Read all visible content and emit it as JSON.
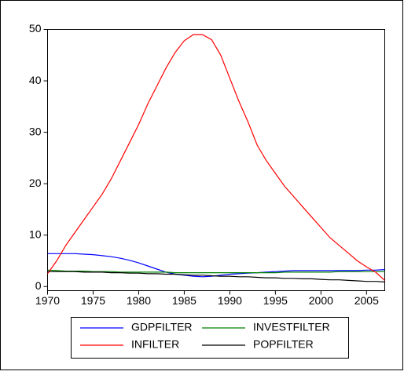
{
  "chart_data": {
    "type": "line",
    "x": [
      1970,
      1971,
      1972,
      1973,
      1974,
      1975,
      1976,
      1977,
      1978,
      1979,
      1980,
      1981,
      1982,
      1983,
      1984,
      1985,
      1986,
      1987,
      1988,
      1989,
      1990,
      1991,
      1992,
      1993,
      1994,
      1995,
      1996,
      1997,
      1998,
      1999,
      2000,
      2001,
      2002,
      2003,
      2004,
      2005,
      2006,
      2007
    ],
    "series": [
      {
        "name": "GDPFILTER",
        "color": "#0000ff",
        "values": [
          6.4,
          6.4,
          6.4,
          6.4,
          6.3,
          6.2,
          6.0,
          5.8,
          5.5,
          5.1,
          4.6,
          4.0,
          3.4,
          2.8,
          2.4,
          2.2,
          2.0,
          1.9,
          2.0,
          2.2,
          2.4,
          2.5,
          2.6,
          2.7,
          2.8,
          2.9,
          3.0,
          3.1,
          3.1,
          3.1,
          3.1,
          3.1,
          3.1,
          3.1,
          3.1,
          3.2,
          3.2,
          3.3
        ]
      },
      {
        "name": "INVESTFILTER",
        "color": "#008000",
        "values": [
          3.2,
          3.1,
          3.0,
          3.0,
          3.0,
          2.9,
          2.9,
          2.9,
          2.8,
          2.8,
          2.8,
          2.8,
          2.8,
          2.8,
          2.7,
          2.7,
          2.7,
          2.7,
          2.7,
          2.7,
          2.7,
          2.7,
          2.7,
          2.7,
          2.7,
          2.7,
          2.8,
          2.8,
          2.8,
          2.8,
          2.8,
          2.8,
          2.9,
          2.9,
          2.9,
          2.9,
          2.9,
          2.9
        ]
      },
      {
        "name": "INFILTER",
        "color": "#ff0000",
        "values": [
          2.5,
          5,
          8,
          10.5,
          13,
          15.5,
          18,
          21,
          24.5,
          28,
          31.5,
          35.5,
          39,
          42.5,
          45.5,
          47.8,
          49,
          49,
          48,
          45,
          40.5,
          36,
          32,
          27.5,
          24.5,
          22,
          19.5,
          17.5,
          15.5,
          13.5,
          11.5,
          9.5,
          8,
          6.5,
          5,
          3.8,
          2.8,
          1.2
        ]
      },
      {
        "name": "POPFILTER",
        "color": "#000000",
        "values": [
          2.9,
          2.9,
          2.9,
          2.9,
          2.8,
          2.8,
          2.8,
          2.7,
          2.7,
          2.6,
          2.6,
          2.5,
          2.5,
          2.4,
          2.4,
          2.3,
          2.2,
          2.2,
          2.1,
          2.0,
          2.0,
          1.9,
          1.9,
          1.8,
          1.7,
          1.7,
          1.6,
          1.6,
          1.5,
          1.5,
          1.4,
          1.3,
          1.3,
          1.2,
          1.1,
          1.0,
          1.0,
          0.9
        ]
      }
    ],
    "xlim": [
      1970,
      2007
    ],
    "xticks": [
      1970,
      1975,
      1980,
      1985,
      1990,
      1995,
      2000,
      2005
    ],
    "ylim": [
      -0.8,
      50
    ],
    "yticks": [
      0,
      10,
      20,
      30,
      40,
      50
    ],
    "grid": false
  }
}
